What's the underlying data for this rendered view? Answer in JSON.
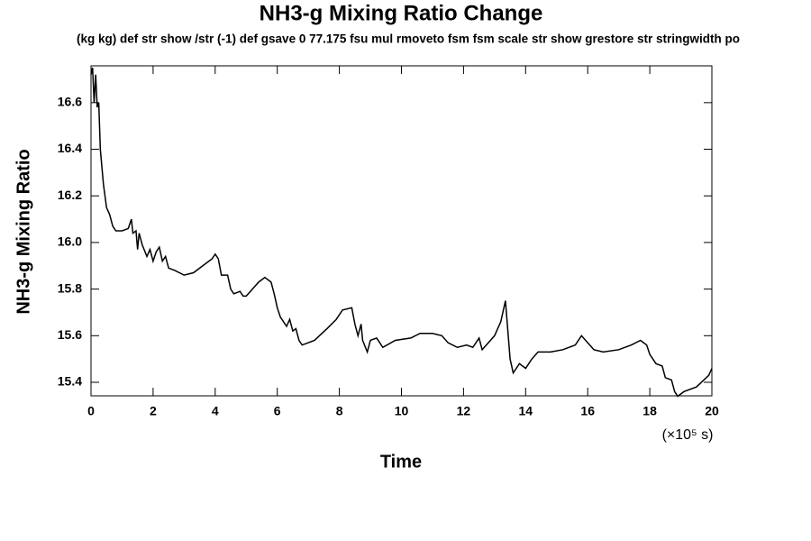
{
  "chart_data": {
    "type": "line",
    "title": "NH3-g Mixing Ratio Change",
    "subtitle": "(kg kg) def str show /str (-1) def gsave 0 77.175 fsu mul rmoveto fsm fsm scale str show grestore str stringwidth po",
    "x_label": "Time",
    "y_label": "NH3-g Mixing Ratio",
    "x_unit": "(×10⁵ s)",
    "color": "#000000",
    "x": [
      0,
      0.05,
      0.1,
      0.15,
      0.2,
      0.25,
      0.3,
      0.4,
      0.5,
      0.6,
      0.7,
      0.8,
      1.0,
      1.2,
      1.3,
      1.35,
      1.45,
      1.5,
      1.55,
      1.65,
      1.8,
      1.9,
      2.0,
      2.1,
      2.2,
      2.3,
      2.4,
      2.5,
      2.7,
      3.0,
      3.3,
      3.6,
      3.9,
      4.0,
      4.1,
      4.2,
      4.4,
      4.5,
      4.6,
      4.8,
      4.9,
      5.0,
      5.2,
      5.4,
      5.6,
      5.8,
      5.9,
      6.0,
      6.1,
      6.3,
      6.4,
      6.5,
      6.6,
      6.7,
      6.8,
      7.2,
      7.6,
      7.9,
      8.1,
      8.4,
      8.5,
      8.6,
      8.7,
      8.75,
      8.9,
      9.0,
      9.2,
      9.4,
      9.8,
      10.3,
      10.6,
      11.0,
      11.3,
      11.5,
      11.8,
      12.1,
      12.3,
      12.5,
      12.6,
      12.8,
      13.0,
      13.2,
      13.35,
      13.5,
      13.6,
      13.8,
      14.0,
      14.2,
      14.4,
      14.8,
      15.2,
      15.6,
      15.8,
      16.0,
      16.2,
      16.5,
      17.0,
      17.4,
      17.7,
      17.9,
      18.0,
      18.2,
      18.4,
      18.5,
      18.7,
      18.8,
      18.9,
      19.1,
      19.5,
      19.9,
      20.0
    ],
    "values": [
      16.72,
      16.75,
      16.6,
      16.72,
      16.58,
      16.6,
      16.4,
      16.25,
      16.15,
      16.12,
      16.07,
      16.05,
      16.05,
      16.06,
      16.1,
      16.04,
      16.05,
      15.97,
      16.04,
      15.99,
      15.94,
      15.97,
      15.92,
      15.96,
      15.98,
      15.92,
      15.94,
      15.89,
      15.88,
      15.86,
      15.87,
      15.9,
      15.93,
      15.95,
      15.93,
      15.86,
      15.86,
      15.8,
      15.78,
      15.79,
      15.77,
      15.77,
      15.8,
      15.83,
      15.85,
      15.83,
      15.78,
      15.72,
      15.68,
      15.64,
      15.67,
      15.62,
      15.63,
      15.58,
      15.56,
      15.58,
      15.63,
      15.67,
      15.71,
      15.72,
      15.65,
      15.6,
      15.65,
      15.58,
      15.53,
      15.58,
      15.59,
      15.55,
      15.58,
      15.59,
      15.61,
      15.61,
      15.6,
      15.57,
      15.55,
      15.56,
      15.55,
      15.59,
      15.54,
      15.57,
      15.6,
      15.66,
      15.75,
      15.5,
      15.44,
      15.48,
      15.46,
      15.5,
      15.53,
      15.53,
      15.54,
      15.56,
      15.6,
      15.57,
      15.54,
      15.53,
      15.54,
      15.56,
      15.58,
      15.56,
      15.52,
      15.48,
      15.47,
      15.42,
      15.41,
      15.36,
      15.34,
      15.36,
      15.38,
      15.43,
      15.46
    ],
    "xlim": [
      0,
      20
    ],
    "xticks": [
      0,
      2,
      4,
      6,
      8,
      10,
      12,
      14,
      16,
      18,
      20
    ],
    "ylim": [
      15.342,
      16.758
    ],
    "yticks": [
      15.4,
      15.6,
      15.8,
      {
        "value": 16,
        "label": "16.0"
      },
      16.2,
      16.4,
      16.6
    ]
  }
}
